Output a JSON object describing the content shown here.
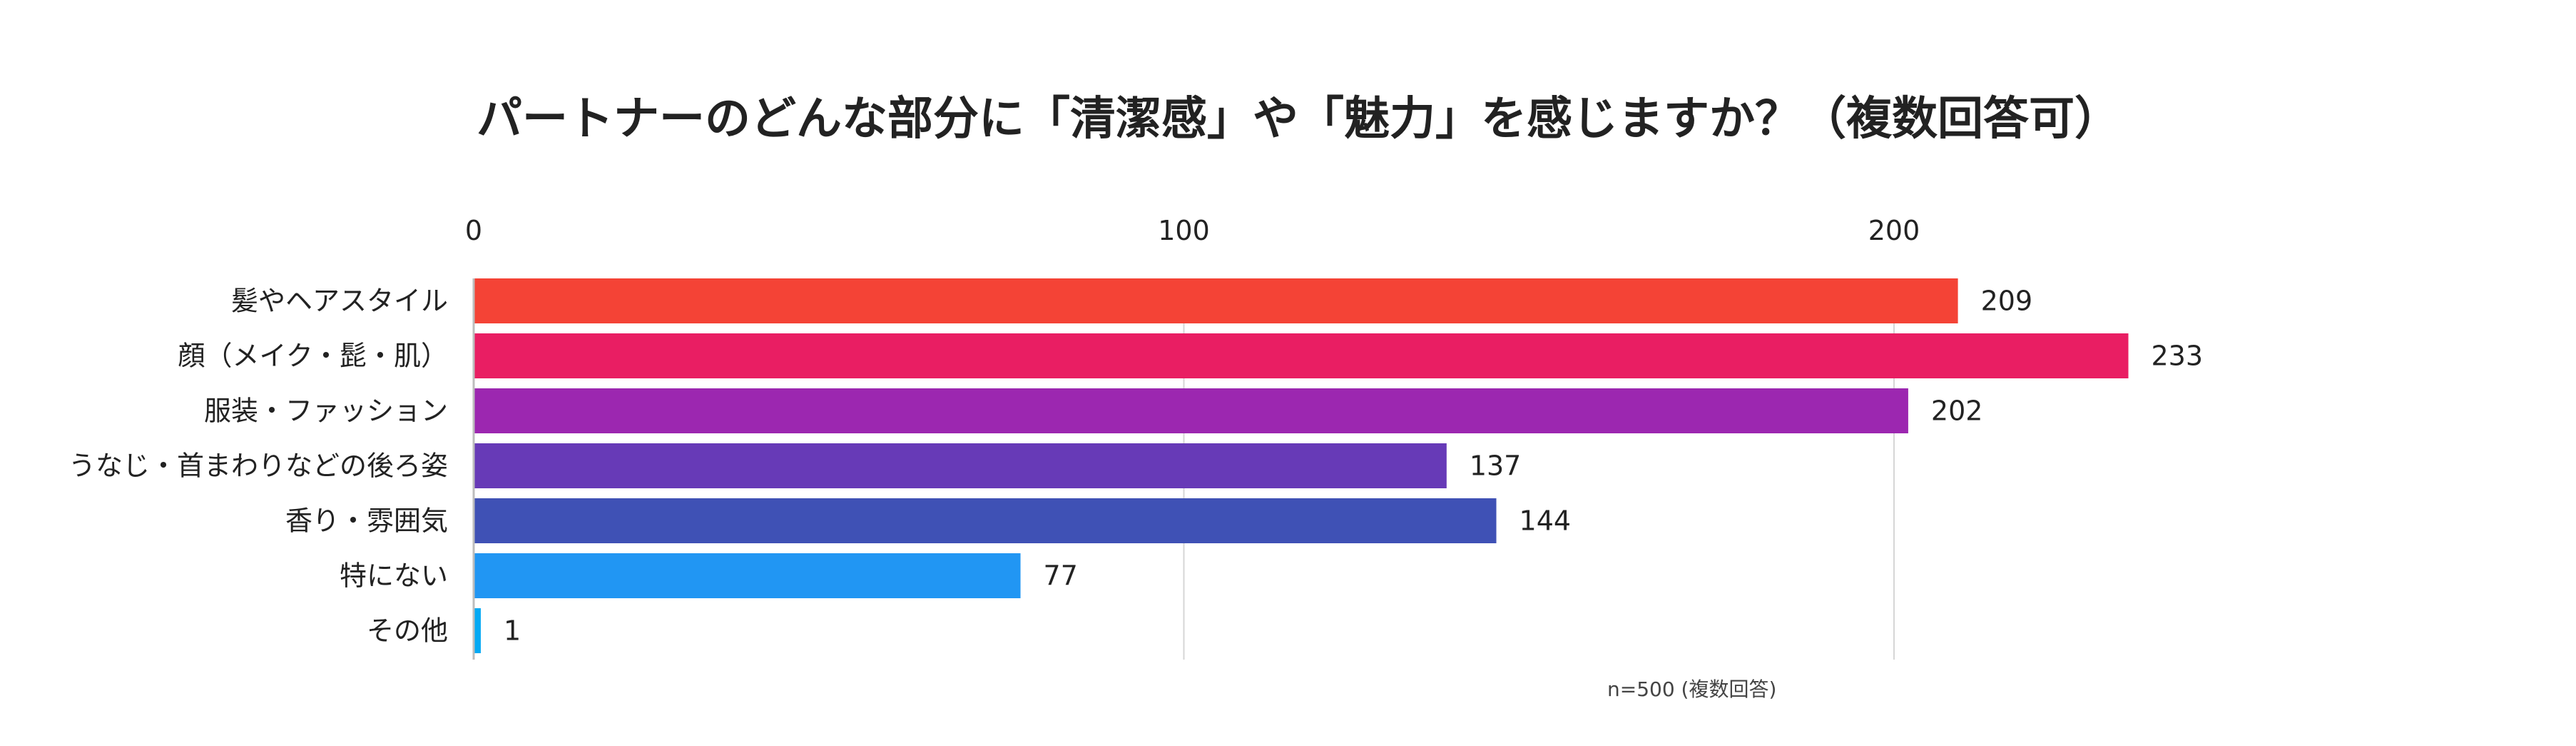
{
  "chart_data": {
    "type": "bar",
    "orientation": "horizontal",
    "title": "パートナーのどんな部分に「清潔感」や「魅力」を感じますか？（複数回答可）",
    "categories": [
      "髪やヘアスタイル",
      "顔（メイク・髭・肌）",
      "服装・ファッション",
      "うなじ・首まわりなどの後ろ姿",
      "香り・雰囲気",
      "特にない",
      "その他"
    ],
    "values": [
      209,
      233,
      202,
      137,
      144,
      77,
      1
    ],
    "colors": [
      "#f44336",
      "#e91e63",
      "#9c27b0",
      "#673ab7",
      "#3f51b5",
      "#2196f3",
      "#03a9f4"
    ],
    "ticks": [
      "0",
      "100",
      "200"
    ],
    "xlim": [
      0,
      260
    ],
    "grid": true,
    "axis_position": "top",
    "note": "n=500 (複数回答)"
  }
}
